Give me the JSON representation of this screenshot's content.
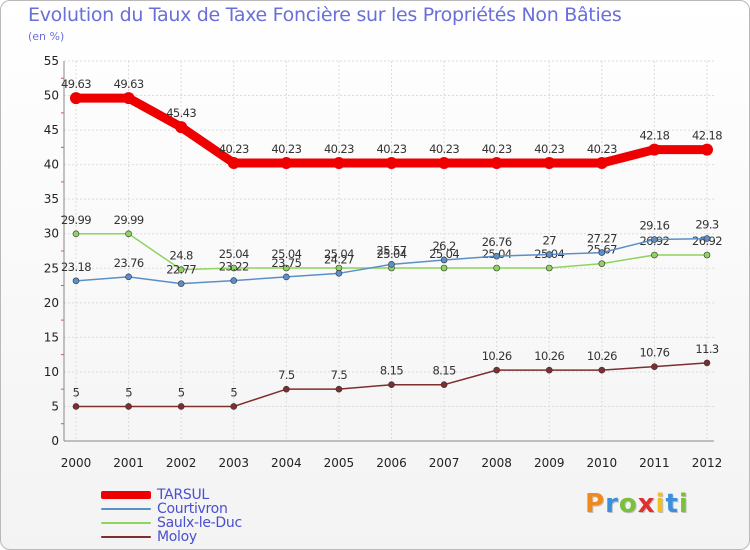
{
  "chart_data": {
    "type": "line",
    "title": "Evolution du Taux de Taxe Foncière sur les Propriétés Non Bâties",
    "unit_label": "(en %)",
    "xlabel": "",
    "ylabel": "",
    "ylim": [
      0,
      55
    ],
    "y_ticks": [
      "0",
      "5",
      "10",
      "15",
      "20",
      "25",
      "30",
      "35",
      "40",
      "45",
      "50",
      "55"
    ],
    "categories": [
      "2000",
      "2001",
      "2002",
      "2003",
      "2004",
      "2005",
      "2006",
      "2007",
      "2008",
      "2009",
      "2010",
      "2011",
      "2012"
    ],
    "grid": true,
    "legend_position": "bottom-left",
    "series": [
      {
        "name": "TARSUL",
        "color": "#ee0000",
        "values": [
          49.63,
          49.63,
          45.43,
          40.23,
          40.23,
          40.23,
          40.23,
          40.23,
          40.23,
          40.23,
          40.23,
          42.18,
          42.18
        ],
        "labels": [
          "49.63",
          "49.63",
          "45.43",
          "40.23",
          "40.23",
          "40.23",
          "40.23",
          "40.23",
          "40.23",
          "40.23",
          "40.23",
          "42.18",
          "42.18"
        ]
      },
      {
        "name": "Courtivron",
        "color": "#5b8fc9",
        "values": [
          23.18,
          23.76,
          22.77,
          23.22,
          23.75,
          24.27,
          25.57,
          26.2,
          26.76,
          27,
          27.27,
          29.16,
          29.3
        ],
        "labels": [
          "23.18",
          "23.76",
          "22.77",
          "23.22",
          "23.75",
          "24.27",
          "25.57",
          "26.2",
          "26.76",
          "27",
          "27.27",
          "29.16",
          "29.3"
        ]
      },
      {
        "name": "Saulx-le-Duc",
        "color": "#8ed45e",
        "values": [
          29.99,
          29.99,
          24.8,
          25.04,
          25.04,
          25.04,
          25.04,
          25.04,
          25.04,
          25.04,
          25.67,
          26.92,
          26.92
        ],
        "labels": [
          "29.99",
          "29.99",
          "24.8",
          "25.04",
          "25.04",
          "25.04",
          "25.04",
          "25.04",
          "25.04",
          "25.04",
          "25.67",
          "26.92",
          "26.92"
        ]
      },
      {
        "name": "Moloy",
        "color": "#7d2e2e",
        "values": [
          5,
          5,
          5,
          5,
          7.5,
          7.5,
          8.15,
          8.15,
          10.26,
          10.26,
          10.26,
          10.76,
          11.3
        ],
        "labels": [
          "5",
          "5",
          "5",
          "5",
          "7.5",
          "7.5",
          "8.15",
          "8.15",
          "10.26",
          "10.26",
          "10.26",
          "10.76",
          "11.3"
        ]
      }
    ]
  },
  "brand": {
    "letters": [
      "P",
      "r",
      "o",
      "x",
      "i",
      "t",
      "i"
    ],
    "colors": [
      "#f08a1c",
      "#3d8fdc",
      "#7bbf3a",
      "#e0302e",
      "#f0c020",
      "#3d8fdc",
      "#7bbf3a"
    ]
  }
}
